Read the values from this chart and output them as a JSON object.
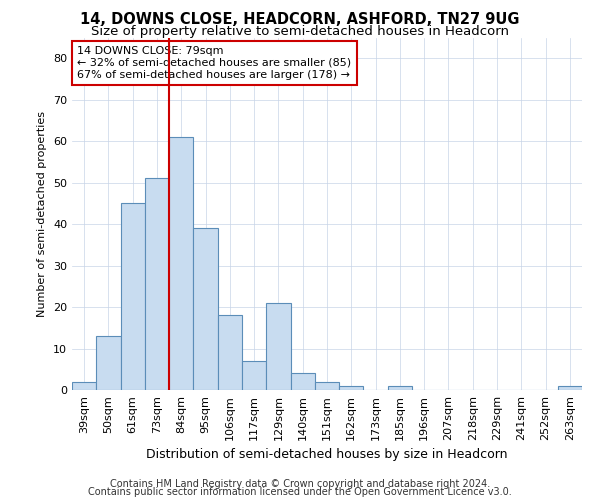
{
  "title": "14, DOWNS CLOSE, HEADCORN, ASHFORD, TN27 9UG",
  "subtitle": "Size of property relative to semi-detached houses in Headcorn",
  "xlabel": "Distribution of semi-detached houses by size in Headcorn",
  "ylabel": "Number of semi-detached properties",
  "categories": [
    "39sqm",
    "50sqm",
    "61sqm",
    "73sqm",
    "84sqm",
    "95sqm",
    "106sqm",
    "117sqm",
    "129sqm",
    "140sqm",
    "151sqm",
    "162sqm",
    "173sqm",
    "185sqm",
    "196sqm",
    "207sqm",
    "218sqm",
    "229sqm",
    "241sqm",
    "252sqm",
    "263sqm"
  ],
  "values": [
    2,
    13,
    45,
    51,
    61,
    39,
    18,
    7,
    21,
    4,
    2,
    1,
    0,
    1,
    0,
    0,
    0,
    0,
    0,
    0,
    1
  ],
  "bar_color": "#c8dcf0",
  "bar_edge_color": "#5b8db8",
  "red_line_bar_index": 4,
  "ylim": [
    0,
    85
  ],
  "yticks": [
    0,
    10,
    20,
    30,
    40,
    50,
    60,
    70,
    80
  ],
  "annotation_title": "14 DOWNS CLOSE: 79sqm",
  "annotation_line1": "← 32% of semi-detached houses are smaller (85)",
  "annotation_line2": "67% of semi-detached houses are larger (178) →",
  "annotation_box_color": "#ffffff",
  "annotation_box_edge": "#cc0000",
  "red_line_color": "#cc0000",
  "footer1": "Contains HM Land Registry data © Crown copyright and database right 2024.",
  "footer2": "Contains public sector information licensed under the Open Government Licence v3.0.",
  "title_fontsize": 10.5,
  "subtitle_fontsize": 9.5,
  "xlabel_fontsize": 9,
  "ylabel_fontsize": 8,
  "tick_fontsize": 8,
  "annotation_fontsize": 8,
  "footer_fontsize": 7,
  "background_color": "#ffffff",
  "grid_color": "#c8d4e8"
}
